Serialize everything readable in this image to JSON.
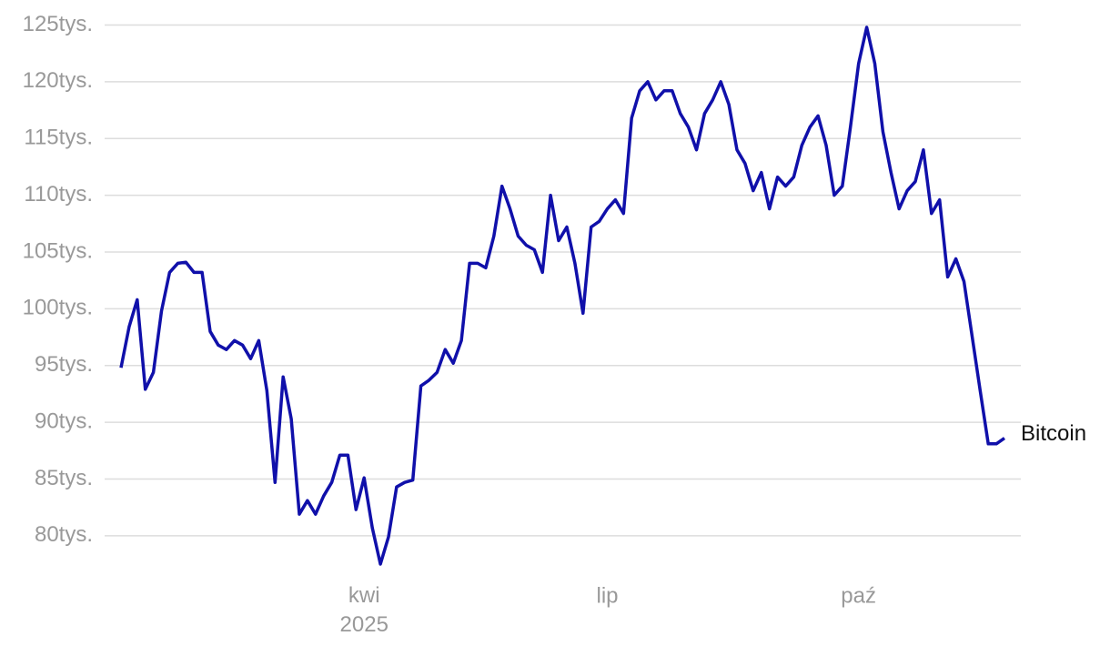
{
  "chart_data": {
    "type": "line",
    "categories": [
      null,
      null,
      null,
      null,
      null,
      null,
      null,
      null,
      null,
      null,
      null,
      null,
      null,
      null,
      null,
      null,
      null,
      null,
      null,
      null,
      null,
      null,
      null,
      null,
      null,
      null,
      null,
      null,
      null,
      null,
      "kwi\n2025",
      null,
      null,
      null,
      null,
      null,
      null,
      null,
      null,
      null,
      null,
      null,
      null,
      null,
      null,
      null,
      null,
      null,
      null,
      null,
      null,
      null,
      null,
      null,
      null,
      null,
      null,
      null,
      null,
      null,
      "lip",
      null,
      null,
      null,
      null,
      null,
      null,
      null,
      null,
      null,
      null,
      null,
      null,
      null,
      null,
      null,
      null,
      null,
      null,
      null,
      null,
      null,
      null,
      null,
      null,
      null,
      null,
      null,
      null,
      null,
      null,
      "paź",
      null,
      null,
      null,
      null,
      null,
      null,
      null,
      null,
      null,
      null,
      null,
      null,
      null,
      null,
      null,
      null,
      null,
      null
    ],
    "series": [
      {
        "name": "Bitcoin",
        "color": "#1010aa",
        "values": [
          94800,
          98400,
          100800,
          92900,
          94400,
          99800,
          103200,
          104000,
          104100,
          103200,
          103200,
          98000,
          96800,
          96400,
          97200,
          96800,
          95600,
          97200,
          92800,
          84700,
          94000,
          90300,
          81900,
          83100,
          81900,
          83500,
          84700,
          87100,
          87100,
          82300,
          85100,
          80700,
          77500,
          79900,
          84300,
          84700,
          84900,
          93200,
          93700,
          94400,
          96400,
          95200,
          97200,
          104000,
          104000,
          103600,
          106400,
          110800,
          108800,
          106400,
          105600,
          105200,
          103200,
          110000,
          106000,
          107200,
          104000,
          99600,
          107200,
          107700,
          108800,
          109600,
          108400,
          116800,
          119200,
          120000,
          118400,
          119200,
          119200,
          117200,
          116000,
          114000,
          117200,
          118400,
          120000,
          118000,
          114000,
          112800,
          110400,
          112000,
          108800,
          111600,
          110800,
          111600,
          114400,
          116000,
          117000,
          114400,
          110000,
          110800,
          116000,
          121600,
          124800,
          121600,
          115600,
          112000,
          108800,
          110400,
          111200,
          114000,
          108400,
          109600,
          102800,
          104400,
          102400,
          97600,
          92800,
          88100,
          88100,
          88600
        ]
      }
    ],
    "ylim": [
      76700,
      126000
    ],
    "yticks": [
      {
        "value": 80000,
        "label": "80tys."
      },
      {
        "value": 85000,
        "label": "85tys."
      },
      {
        "value": 90000,
        "label": "90tys."
      },
      {
        "value": 95000,
        "label": "95tys."
      },
      {
        "value": 100000,
        "label": "100tys."
      },
      {
        "value": 105000,
        "label": "105tys."
      },
      {
        "value": 110000,
        "label": "110tys."
      },
      {
        "value": 115000,
        "label": "115tys."
      },
      {
        "value": 120000,
        "label": "120tys."
      },
      {
        "value": 125000,
        "label": "125tys."
      }
    ],
    "grid": true
  }
}
